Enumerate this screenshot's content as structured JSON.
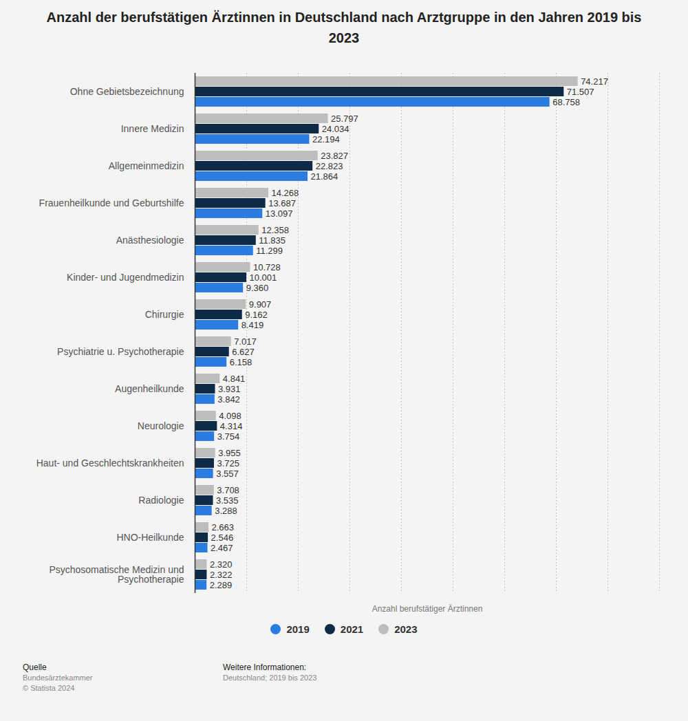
{
  "chart_data": {
    "type": "bar",
    "title": "Anzahl der berufstätigen Ärztinnen in Deutschland nach Arztgruppe in den Jahren 2019 bis 2023",
    "orientation": "horizontal",
    "x_label": "Anzahl berufstätiger Ärztinnen",
    "categories": [
      "Ohne Gebietsbezeichnung",
      "Innere Medizin",
      "Allgemeinmedizin",
      "Frauenheilkunde und Geburtshilfe",
      "Anästhesiologie",
      "Kinder- und Jugendmedizin",
      "Chirurgie",
      "Psychiatrie u. Psychotherapie",
      "Augenheilkunde",
      "Neurologie",
      "Haut- und Geschlechtskrankheiten",
      "Radiologie",
      "HNO-Heilkunde",
      "Psychosomatische Medizin und Psychotherapie"
    ],
    "series": [
      {
        "name": "2019",
        "color": "#2b7be0",
        "values": [
          68758,
          22194,
          21864,
          13097,
          11299,
          9360,
          8419,
          6158,
          3842,
          3754,
          3557,
          3288,
          2467,
          2289
        ],
        "value_labels": [
          "68.758",
          "22.194",
          "21.864",
          "13.097",
          "11.299",
          "9.360",
          "8.419",
          "6.158",
          "3.842",
          "3.754",
          "3.557",
          "3.288",
          "2.467",
          "2.289"
        ]
      },
      {
        "name": "2021",
        "color": "#0e2a47",
        "values": [
          71507,
          24034,
          22823,
          13687,
          11835,
          10001,
          9162,
          6627,
          3931,
          4314,
          3725,
          3535,
          2546,
          2322
        ],
        "value_labels": [
          "71.507",
          "24.034",
          "22.823",
          "13.687",
          "11.835",
          "10.001",
          "9.162",
          "6.627",
          "3.931",
          "4.314",
          "3.725",
          "3.535",
          "2.546",
          "2.322"
        ]
      },
      {
        "name": "2023",
        "color": "#bdbdbd",
        "values": [
          74217,
          25797,
          23827,
          14268,
          12358,
          10728,
          9907,
          7017,
          4841,
          4098,
          3955,
          3708,
          2663,
          2320
        ],
        "value_labels": [
          "74.217",
          "25.797",
          "23.827",
          "14.268",
          "12.358",
          "10.728",
          "9.907",
          "7.017",
          "4.841",
          "4.098",
          "3.955",
          "3.708",
          "2.663",
          "2.320"
        ]
      }
    ],
    "xlim": [
      0,
      90000
    ],
    "xticks": [
      0,
      10000,
      20000,
      30000,
      40000,
      50000,
      60000,
      70000,
      80000,
      90000
    ],
    "grid": true,
    "data_labels": true,
    "tick_labels": "y",
    "legend": "bottom",
    "annotations": [
      "Quelle",
      "Bundesärztekammer",
      "© Statista 2024",
      "Weitere Informationen:",
      "Deutschland; 2019 bis 2023"
    ]
  }
}
